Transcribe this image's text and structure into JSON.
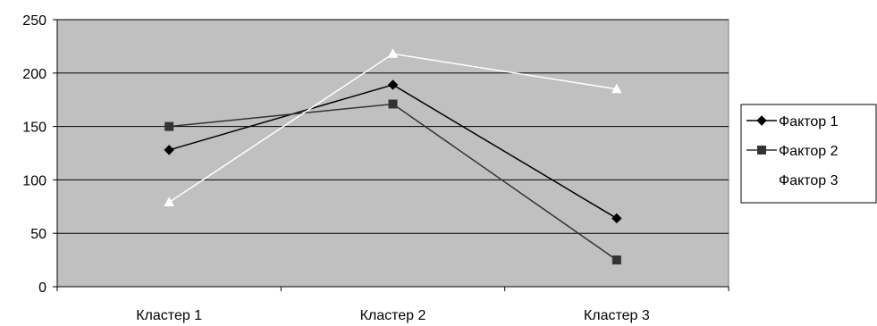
{
  "chart_data": {
    "type": "line",
    "categories": [
      "Кластер 1",
      "Кластер 2",
      "Кластер 3"
    ],
    "series": [
      {
        "name": "Фактор 1",
        "values": [
          128,
          189,
          64
        ],
        "color": "#000000",
        "marker": "diamond"
      },
      {
        "name": "Фактор 2",
        "values": [
          150,
          171,
          25
        ],
        "color": "#333333",
        "marker": "square"
      },
      {
        "name": "Фактор 3",
        "values": [
          79,
          218,
          185
        ],
        "color": "#ffffff",
        "marker": "triangle"
      }
    ],
    "ylim": [
      0,
      250
    ],
    "yticks": [
      0,
      50,
      100,
      150,
      200,
      250
    ],
    "grid": true,
    "legend_position": "right",
    "plot_background": "#c0c0c0"
  }
}
